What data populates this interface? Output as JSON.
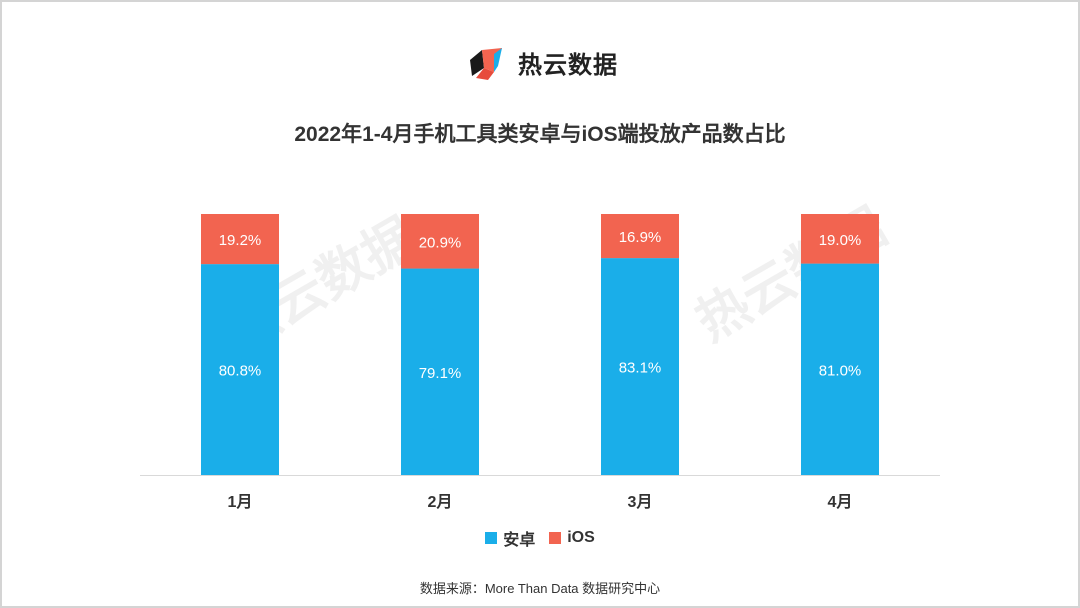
{
  "brand": {
    "name": "热云数据"
  },
  "watermark": {
    "text": "热云数据"
  },
  "footer": {
    "source": "数据来源：More Than Data 数据研究中心"
  },
  "colors": {
    "android": "#1AAEE9",
    "ios": "#F26450",
    "axis": "#d9d9d9",
    "text": "#333333"
  },
  "chart_data": {
    "type": "bar",
    "stacked": true,
    "title": "2022年1-4月手机工具类安卓与iOS端投放产品数占比",
    "categories": [
      "1月",
      "2月",
      "3月",
      "4月"
    ],
    "series": [
      {
        "name": "安卓",
        "values": [
          80.8,
          79.1,
          83.1,
          81.0
        ],
        "labels": [
          "80.8%",
          "79.1%",
          "83.1%",
          "81.0%"
        ]
      },
      {
        "name": "iOS",
        "values": [
          19.2,
          20.9,
          16.9,
          19.0
        ],
        "labels": [
          "19.2%",
          "20.9%",
          "16.9%",
          "19.0%"
        ]
      }
    ],
    "ylim": [
      0,
      100
    ],
    "legend_position": "bottom",
    "grid": false
  }
}
